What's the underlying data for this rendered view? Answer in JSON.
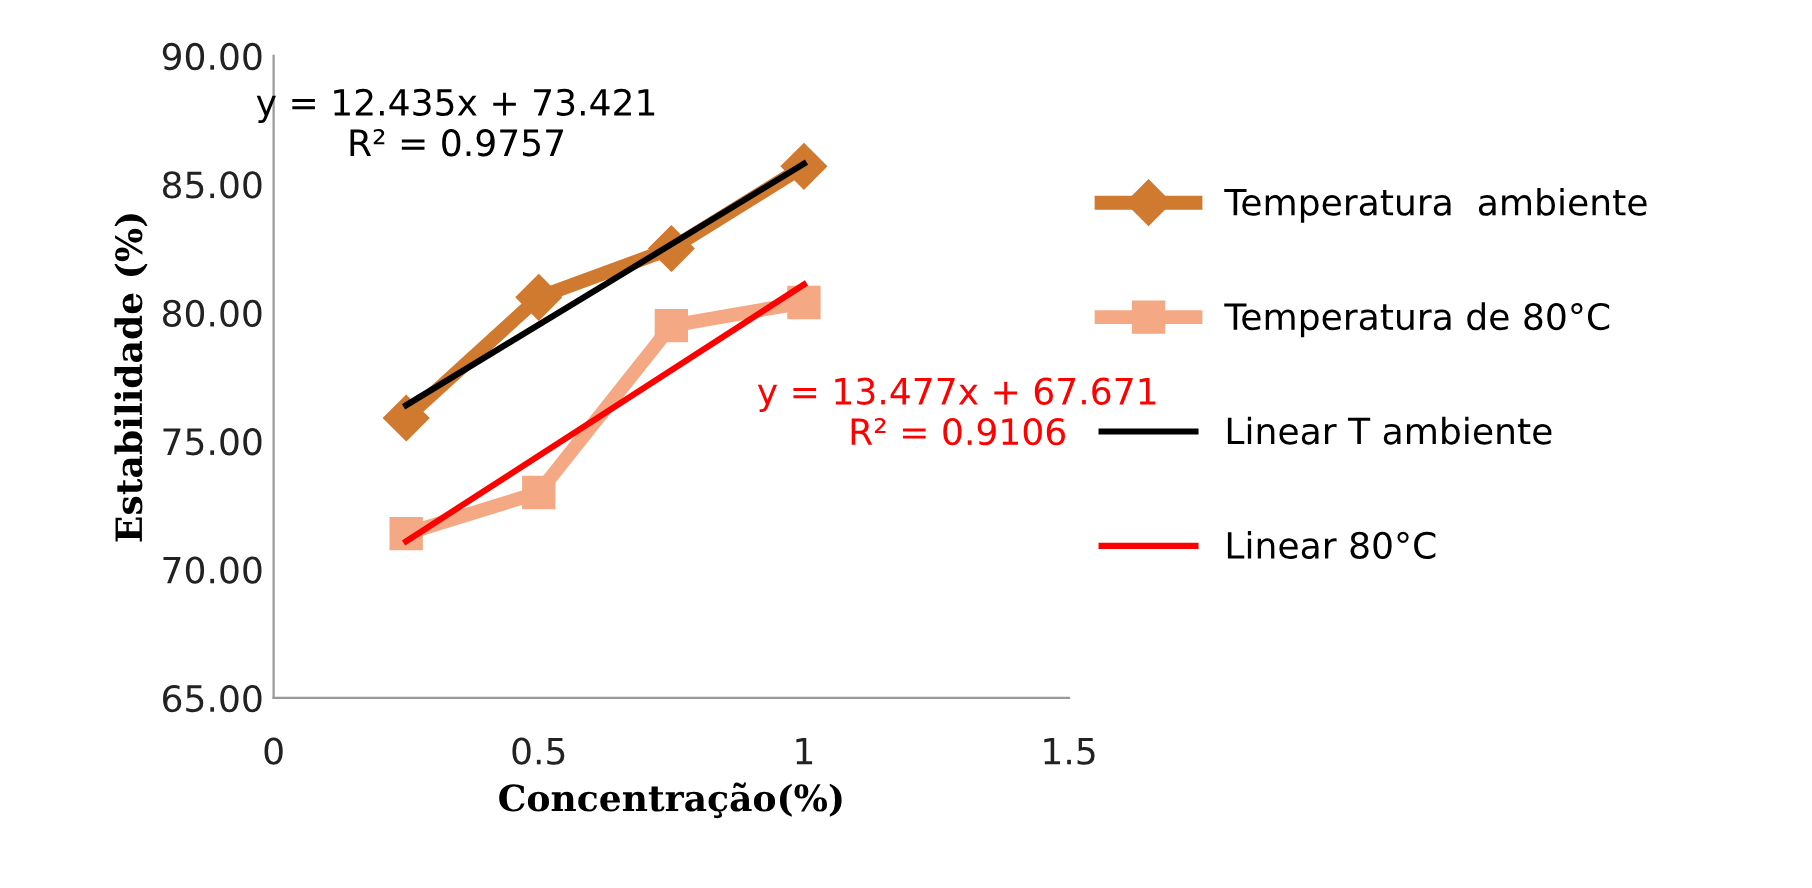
{
  "chart_data": {
    "type": "line",
    "xlabel": "Concentração(%)",
    "ylabel": "Estabilidade (%)",
    "series": [
      {
        "name": "Temperatura  ambiente",
        "color": "#d07a30",
        "marker": "diamond",
        "x": [
          0.25,
          0.5,
          0.75,
          1
        ],
        "values": [
          75.9,
          80.6,
          82.5,
          85.7
        ]
      },
      {
        "name": "Temperatura de 80°C",
        "color": "#f4a883",
        "marker": "square",
        "x": [
          0.25,
          0.5,
          0.75,
          1
        ],
        "values": [
          71.4,
          73.0,
          79.5,
          80.4
        ]
      },
      {
        "name": "Linear T ambiente",
        "color": "#000000",
        "marker": "none",
        "x": [
          0.25,
          1
        ],
        "values": [
          76.4,
          85.8
        ]
      },
      {
        "name": "Linear 80°C",
        "color": "#ff0000",
        "marker": "none",
        "x": [
          0.25,
          1
        ],
        "values": [
          71.1,
          81.1
        ]
      }
    ],
    "annotations": [
      "y = 12.435x + 73.421\nR² = 0.9757",
      "y = 13.477x + 67.671\nR² = 0.9106"
    ],
    "xlim": [
      0,
      1.5
    ],
    "xticks": [
      0,
      0.5,
      1,
      1.5
    ],
    "ylim": [
      65,
      90
    ],
    "yticks": [
      {
        "value": 65,
        "label": "65.00"
      },
      {
        "value": 70,
        "label": "70.00"
      },
      {
        "value": 75,
        "label": "75.00"
      },
      {
        "value": 80,
        "label": "80.00"
      },
      {
        "value": 85,
        "label": "85.00"
      },
      {
        "value": 90,
        "label": "90.00"
      }
    ],
    "grid": false,
    "legend": "right",
    "line_style": "solid"
  }
}
